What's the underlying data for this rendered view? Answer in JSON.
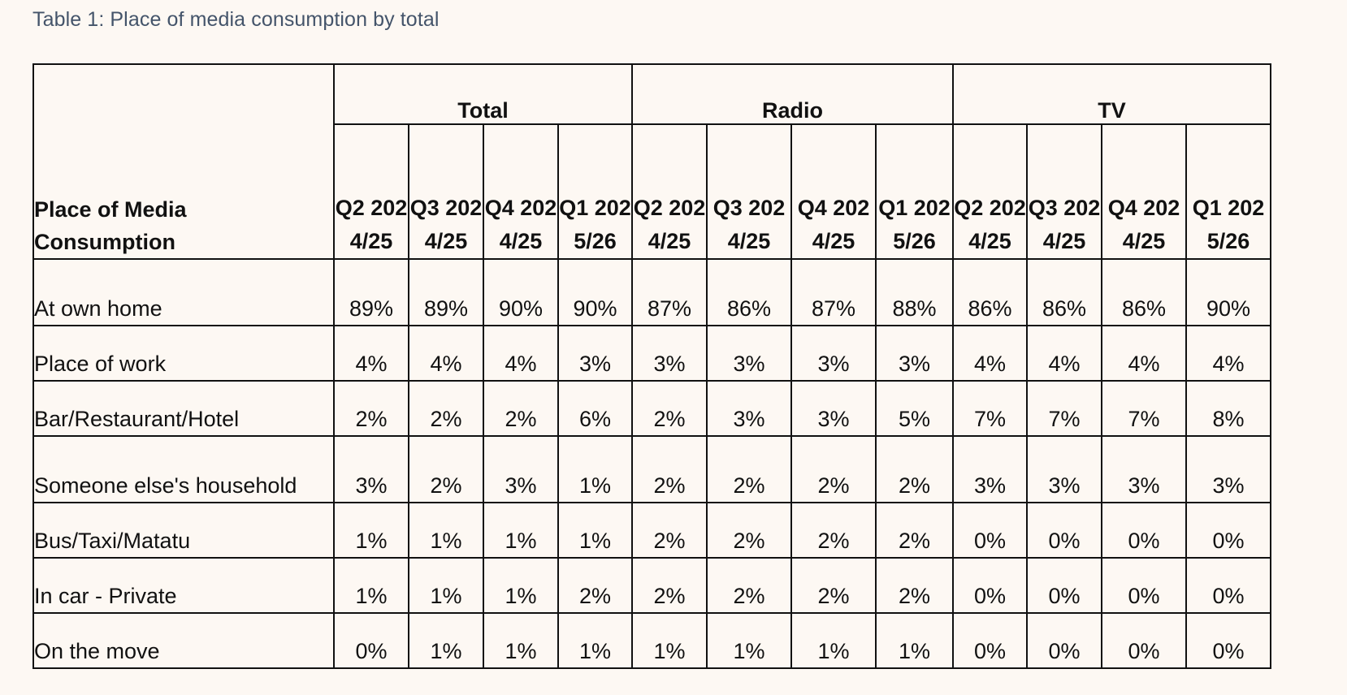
{
  "caption": "Table 1: Place of media consumption by total",
  "table": {
    "row_header": "Place of Media Consumption",
    "groups": [
      "Total",
      "Radio",
      "TV"
    ],
    "periods": [
      "Q2 2024/25",
      "Q3 2024/25",
      "Q4 2024/25",
      "Q1 2025/26",
      "Q2 2024/25",
      "Q3 2024/25",
      "Q4 2024/25",
      "Q1 2025/26",
      "Q2 2024/25",
      "Q3 2024/25",
      "Q4 2024/25",
      "Q1 2025/26"
    ],
    "rows": [
      {
        "label": "At own home",
        "values": [
          "89%",
          "89%",
          "90%",
          "90%",
          "87%",
          "86%",
          "87%",
          "88%",
          "86%",
          "86%",
          "86%",
          "90%"
        ]
      },
      {
        "label": "Place of work",
        "values": [
          "4%",
          "4%",
          "4%",
          "3%",
          "3%",
          "3%",
          "3%",
          "3%",
          "4%",
          "4%",
          "4%",
          "4%"
        ]
      },
      {
        "label": "Bar/Restaurant/Hotel",
        "values": [
          "2%",
          "2%",
          "2%",
          "6%",
          "2%",
          "3%",
          "3%",
          "5%",
          "7%",
          "7%",
          "7%",
          "8%"
        ]
      },
      {
        "label": "Someone else's household",
        "values": [
          "3%",
          "2%",
          "3%",
          "1%",
          "2%",
          "2%",
          "2%",
          "2%",
          "3%",
          "3%",
          "3%",
          "3%"
        ]
      },
      {
        "label": "Bus/Taxi/Matatu",
        "values": [
          "1%",
          "1%",
          "1%",
          "1%",
          "2%",
          "2%",
          "2%",
          "2%",
          "0%",
          "0%",
          "0%",
          "0%"
        ]
      },
      {
        "label": "In car - Private",
        "values": [
          "1%",
          "1%",
          "1%",
          "2%",
          "2%",
          "2%",
          "2%",
          "2%",
          "0%",
          "0%",
          "0%",
          "0%"
        ]
      },
      {
        "label": "On the move",
        "values": [
          "0%",
          "1%",
          "1%",
          "1%",
          "1%",
          "1%",
          "1%",
          "1%",
          "0%",
          "0%",
          "0%",
          "0%"
        ]
      }
    ]
  }
}
